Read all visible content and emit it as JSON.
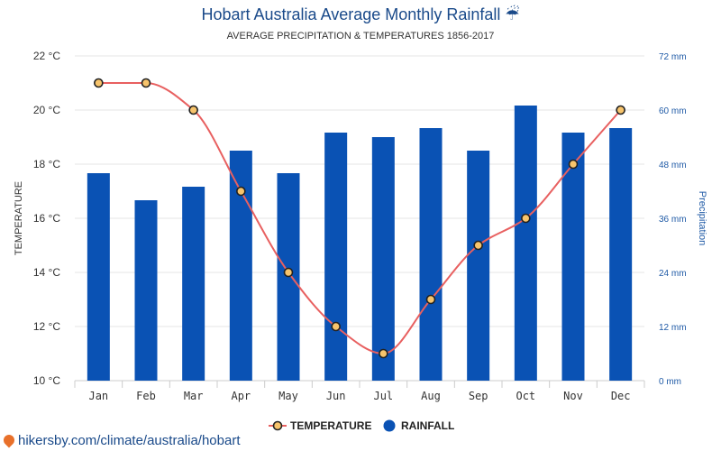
{
  "header": {
    "title": "Hobart Australia Average Monthly Rainfall ☔",
    "subtitle": "AVERAGE PRECIPITATION & TEMPERATURES 1856-2017"
  },
  "footer": {
    "link_text": "hikersby.com/climate/australia/hobart"
  },
  "chart_data": {
    "type": "bar",
    "categories": [
      "Jan",
      "Feb",
      "Mar",
      "Apr",
      "May",
      "Jun",
      "Jul",
      "Aug",
      "Sep",
      "Oct",
      "Nov",
      "Dec"
    ],
    "series": [
      {
        "name": "RAINFALL",
        "type": "bar",
        "unit": "mm",
        "axis": "right",
        "values": [
          46,
          40,
          43,
          51,
          46,
          55,
          54,
          56,
          51,
          61,
          55,
          56
        ],
        "color": "#0a52b4"
      },
      {
        "name": "TEMPERATURE",
        "type": "line",
        "unit": "°C",
        "axis": "left",
        "values": [
          21,
          21,
          20,
          17,
          14,
          12,
          11,
          13,
          15,
          16,
          18,
          20
        ],
        "color": "#e86060",
        "marker_color": "#f7c46c"
      }
    ],
    "ylabel": "TEMPERATURE",
    "y2label": "Precipitation",
    "ylim": [
      10,
      22
    ],
    "y2lim": [
      0,
      72
    ],
    "yticks": [
      "22 °C",
      "20 °C",
      "18 °C",
      "16 °C",
      "14 °C",
      "12 °C",
      "10 °C"
    ],
    "y2ticks": [
      "72 mm",
      "60 mm",
      "48 mm",
      "36 mm",
      "24 mm",
      "12 mm",
      "0 mm"
    ],
    "legend": {
      "position": "bottom",
      "items": [
        "TEMPERATURE",
        "RAINFALL"
      ]
    },
    "grid": true
  }
}
